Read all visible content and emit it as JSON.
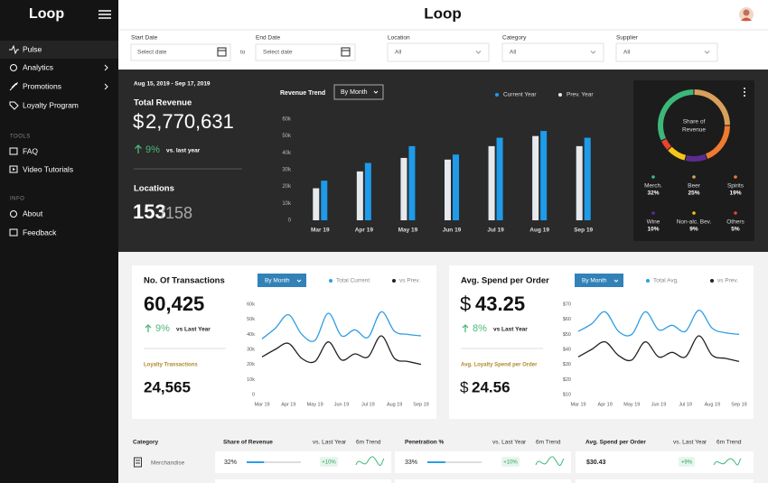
{
  "sidebar": {
    "logo": "Loop",
    "items": [
      "Pulse",
      "Analytics",
      "Promotions",
      "Loyalty Program"
    ],
    "tools_heading": "TOOLS",
    "tools": [
      "FAQ",
      "Video Tutorials"
    ],
    "info_heading": "INFO",
    "info": [
      "About",
      "Feedback"
    ]
  },
  "header": {
    "logo": "Loop"
  },
  "filters": {
    "start_label": "Start Date",
    "start_placeholder": "Select date",
    "to": "to",
    "end_label": "End Date",
    "end_placeholder": "Select date",
    "location_label": "Location",
    "location_value": "All",
    "category_label": "Category",
    "category_value": "All",
    "supplier_label": "Supplier",
    "supplier_value": "All"
  },
  "revenue": {
    "date_range": "Aug 15, 2019 - Sep 17, 2019",
    "title": "Total Revenue",
    "currency": "$",
    "amount": "2,770,631",
    "change": "9%",
    "change_label": "vs. last year",
    "locations_title": "Locations",
    "locations": "153",
    "locations_total": "/158"
  },
  "transactions": {
    "title": "No. Of Transactions",
    "dropdown": "By Month",
    "value": "60,425",
    "change": "9%",
    "change_label": "vs Last Year",
    "loyalty_label": "Loyalty Transactions",
    "loyalty_value": "24,565"
  },
  "spend": {
    "title": "Avg. Spend per Order",
    "dropdown": "By Month",
    "currency": "$",
    "value": "43.25",
    "change": "8%",
    "change_label": "vs Last Year",
    "loyalty_label": "Avg. Loyalty Spend per Order",
    "loyalty_currency": "$",
    "loyalty_value": "24.56"
  },
  "table": {
    "headers": [
      "Category",
      "Share of Revenue",
      "vs. Last Year",
      "6m Trend",
      "Penetration %",
      "vs. Last Year",
      "6m Trend",
      "Avg. Spend per Order",
      "vs. Last Year",
      "6m Trend"
    ],
    "rows": [
      {
        "category": "Merchandise",
        "share": {
          "value": 32,
          "label": "32%"
        },
        "share_change": "+10%",
        "penetration": {
          "value": 33,
          "label": "33%"
        },
        "penetration_change": "+10%",
        "avg_spend": "$30.43",
        "avg_spend_change": "+9%"
      }
    ]
  },
  "chart_data": [
    {
      "type": "bar",
      "title": "Revenue Trend",
      "dropdown": "By Month",
      "categories": [
        "Mar 19",
        "Apr 19",
        "May 19",
        "Jun 19",
        "Jul 19",
        "Aug 19",
        "Sep 19"
      ],
      "series": [
        {
          "name": "Prev. Year",
          "color": "#e6e9ee",
          "values": [
            19000,
            29000,
            37000,
            36000,
            44000,
            50000,
            44000
          ]
        },
        {
          "name": "Current Year",
          "color": "#1e9be9",
          "values": [
            23500,
            34000,
            44000,
            39000,
            49000,
            53000,
            49000
          ]
        }
      ],
      "ylim": [
        0,
        60000
      ],
      "yticks": [
        {
          "value": 0,
          "label": "0"
        },
        {
          "value": 10000,
          "label": "10k"
        },
        {
          "value": 20000,
          "label": "20k"
        },
        {
          "value": 30000,
          "label": "30k"
        },
        {
          "value": 40000,
          "label": "40k"
        },
        {
          "value": 50000,
          "label": "50k"
        },
        {
          "value": 60000,
          "label": "60k"
        }
      ],
      "grid": false
    },
    {
      "type": "donut",
      "center_label": [
        "Share of",
        "Revenue"
      ],
      "categories": [
        "Merch.",
        "Beer",
        "Spirits",
        "Wine",
        "Non-alc. Bev.",
        "Others"
      ],
      "values": [
        32,
        25,
        19,
        10,
        9,
        5
      ],
      "value_labels": [
        "32%",
        "25%",
        "19%",
        "10%",
        "9%",
        "5%"
      ],
      "colors": [
        "#3cb878",
        "#d9a05b",
        "#f07b2f",
        "#5b2d8e",
        "#f5c518",
        "#e8442e"
      ]
    },
    {
      "type": "line",
      "categories": [
        "Mar 19",
        null,
        "Apr 19",
        null,
        "May 19",
        null,
        "Jun 19",
        null,
        "Jul 19",
        null,
        "Aug 19",
        null,
        "Sep 19"
      ],
      "series": [
        {
          "name": "Total Current",
          "color": "#2f9de4",
          "values": [
            37000,
            44000,
            53000,
            40000,
            36000,
            54000,
            39000,
            43000,
            38000,
            55000,
            42000,
            40000,
            39000
          ]
        },
        {
          "name": "vs Prev.",
          "color": "#222222",
          "values": [
            25000,
            30000,
            34000,
            24000,
            22000,
            35000,
            23000,
            27000,
            25000,
            39000,
            24000,
            22000,
            20000
          ]
        }
      ],
      "ylim": [
        0,
        60000
      ],
      "yticks": [
        {
          "value": 0,
          "label": "0"
        },
        {
          "value": 10000,
          "label": "10k"
        },
        {
          "value": 20000,
          "label": "20k"
        },
        {
          "value": 30000,
          "label": "30k"
        },
        {
          "value": 40000,
          "label": "40k"
        },
        {
          "value": 50000,
          "label": "50k"
        },
        {
          "value": 60000,
          "label": "60k"
        }
      ]
    },
    {
      "type": "line",
      "categories": [
        "Mar 19",
        null,
        "Apr 19",
        null,
        "May 19",
        null,
        "Jun 19",
        null,
        "Jul 19",
        null,
        "Aug 19",
        null,
        "Sep 19"
      ],
      "series": [
        {
          "name": "Total Avg.",
          "color": "#2f9de4",
          "values": [
            52,
            57,
            65,
            52,
            50,
            65,
            53,
            56,
            52,
            66,
            54,
            51,
            50
          ]
        },
        {
          "name": "vs Prev.",
          "color": "#222222",
          "values": [
            35,
            40,
            45,
            36,
            33,
            45,
            35,
            38,
            35,
            49,
            36,
            34,
            32
          ]
        }
      ],
      "ylim": [
        10,
        70
      ],
      "yticks": [
        {
          "value": 10,
          "label": "$10"
        },
        {
          "value": 20,
          "label": "$20"
        },
        {
          "value": 30,
          "label": "$30"
        },
        {
          "value": 40,
          "label": "$40"
        },
        {
          "value": 50,
          "label": "$50"
        },
        {
          "value": 60,
          "label": "$60"
        },
        {
          "value": 70,
          "label": "$70"
        }
      ]
    }
  ]
}
